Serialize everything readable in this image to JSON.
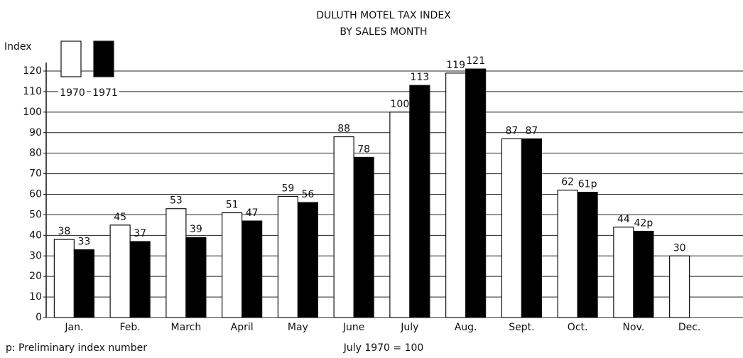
{
  "chart_data": {
    "type": "bar",
    "title": "DULUTH MOTEL TAX INDEX",
    "subtitle": "BY SALES MONTH",
    "y_label": "Index",
    "categories": [
      "Jan.",
      "Feb.",
      "March",
      "April",
      "May",
      "June",
      "July",
      "Aug.",
      "Sept.",
      "Oct.",
      "Nov.",
      "Dec."
    ],
    "series": [
      {
        "name": "1970",
        "color": "#ffffff",
        "values": [
          38,
          45,
          53,
          51,
          59,
          88,
          100,
          119,
          87,
          62,
          44,
          30
        ]
      },
      {
        "name": "1971",
        "color": "#000000",
        "values": [
          33,
          37,
          39,
          47,
          56,
          78,
          113,
          121,
          87,
          61,
          42,
          null
        ],
        "value_labels": [
          "33",
          "37",
          "39",
          "47",
          "56",
          "78",
          "113",
          "121",
          "87",
          "61p",
          "42p",
          null
        ]
      }
    ],
    "ylim": [
      0,
      120
    ],
    "yticks": [
      0,
      10,
      20,
      30,
      40,
      50,
      60,
      70,
      80,
      90,
      100,
      110,
      120
    ],
    "grid": true,
    "legend": "upper left",
    "annotations": [
      "p: Preliminary index number",
      "July 1970 = 100"
    ]
  }
}
